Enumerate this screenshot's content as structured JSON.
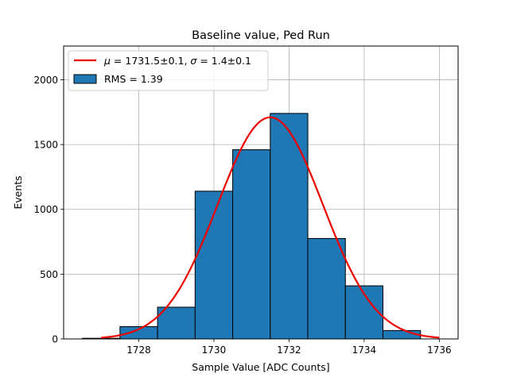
{
  "chart_data": {
    "type": "bar",
    "title": "Baseline value, Ped Run",
    "xlabel": "Sample Value [ADC Counts]",
    "ylabel": "Events",
    "xlim": [
      1726.0,
      1736.5
    ],
    "ylim": [
      0,
      2260
    ],
    "xticks": [
      1728,
      1730,
      1732,
      1734,
      1736
    ],
    "yticks": [
      0,
      500,
      1000,
      1500,
      2000
    ],
    "grid": true,
    "legend_position": "top-left",
    "bins": [
      {
        "left": 1726.5,
        "right": 1727.5,
        "value": 5
      },
      {
        "left": 1727.5,
        "right": 1728.5,
        "value": 95
      },
      {
        "left": 1728.5,
        "right": 1729.5,
        "value": 245
      },
      {
        "left": 1729.5,
        "right": 1730.5,
        "value": 1140
      },
      {
        "left": 1730.5,
        "right": 1731.5,
        "value": 1460
      },
      {
        "left": 1731.5,
        "right": 1732.5,
        "value": 1740
      },
      {
        "left": 1732.5,
        "right": 1733.5,
        "value": 775
      },
      {
        "left": 1733.5,
        "right": 1734.5,
        "value": 410
      },
      {
        "left": 1734.5,
        "right": 1735.5,
        "value": 65
      }
    ],
    "fit": {
      "mu": 1731.5,
      "sigma": 1.4,
      "peak": 1710,
      "x_range": [
        1727.0,
        1736.0
      ]
    },
    "series": [
      {
        "name": "$\\mu = 1731.5\\pm0.1$, $\\sigma = 1.4\\pm0.1$",
        "type": "line",
        "color": "#ee0000"
      },
      {
        "name": "RMS = 1.39",
        "type": "bar",
        "color": "#1f77b4"
      }
    ],
    "legend": {
      "fit_label": {
        "mu_sym": "μ",
        "mu_text": " = 1731.5±0.1, ",
        "sigma_sym": "σ",
        "sigma_text": " = 1.4±0.1"
      },
      "hist_label": "RMS = 1.39"
    }
  }
}
